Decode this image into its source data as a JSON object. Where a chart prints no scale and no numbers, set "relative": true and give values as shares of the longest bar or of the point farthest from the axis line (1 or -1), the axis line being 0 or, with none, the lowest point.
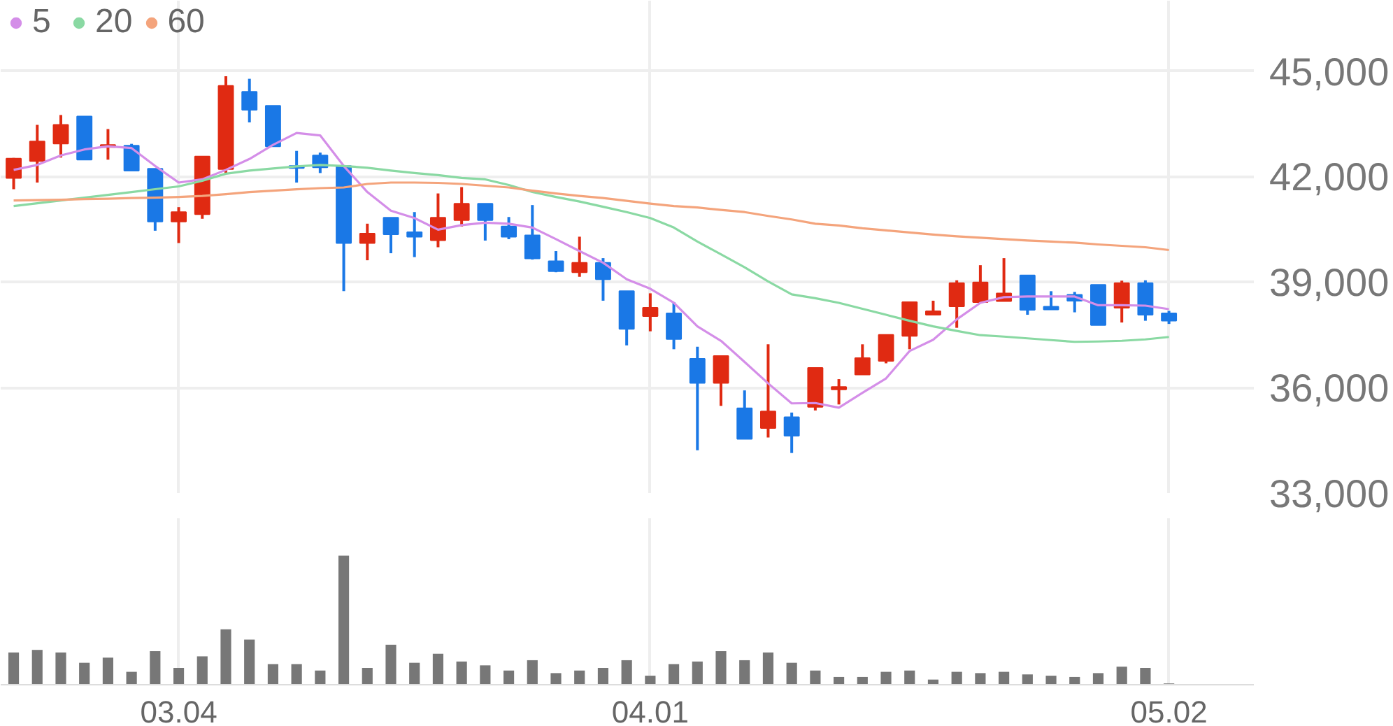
{
  "chart_data": [
    {
      "type": "candlestick",
      "categories": [
        null,
        null,
        null,
        null,
        null,
        null,
        null,
        "03.04",
        null,
        null,
        null,
        null,
        null,
        null,
        null,
        null,
        null,
        null,
        null,
        null,
        null,
        null,
        null,
        null,
        null,
        null,
        null,
        "04.01",
        null,
        null,
        null,
        null,
        null,
        null,
        null,
        null,
        null,
        null,
        null,
        null,
        null,
        null,
        null,
        null,
        null,
        null,
        null,
        null,
        null,
        "05.02"
      ],
      "ohlc": [
        [
          41960,
          42530,
          41640,
          42510
        ],
        [
          42440,
          43470,
          41830,
          43000
        ],
        [
          42940,
          43750,
          42540,
          43470
        ],
        [
          43710,
          43710,
          42480,
          42480
        ],
        [
          42840,
          43350,
          42480,
          42900
        ],
        [
          42880,
          42930,
          42170,
          42170
        ],
        [
          42220,
          42220,
          40460,
          40720
        ],
        [
          40720,
          41130,
          40110,
          40990
        ],
        [
          40930,
          42570,
          40800,
          42570
        ],
        [
          42210,
          44850,
          42100,
          44580
        ],
        [
          44410,
          44780,
          43540,
          43900
        ],
        [
          44010,
          44010,
          42860,
          42860
        ],
        [
          42300,
          42730,
          41830,
          42240
        ],
        [
          42600,
          42680,
          42100,
          42260
        ],
        [
          42300,
          42300,
          38740,
          40110
        ],
        [
          40110,
          40660,
          39620,
          40380
        ],
        [
          40830,
          40830,
          39820,
          40360
        ],
        [
          40420,
          40990,
          39710,
          40290
        ],
        [
          40190,
          41520,
          39990,
          40830
        ],
        [
          40760,
          41700,
          40580,
          41230
        ],
        [
          41230,
          41230,
          40180,
          40760
        ],
        [
          40580,
          40850,
          40220,
          40290
        ],
        [
          40330,
          41190,
          39640,
          39670
        ],
        [
          39590,
          39880,
          39280,
          39310
        ],
        [
          39280,
          40290,
          39150,
          39550
        ],
        [
          39550,
          39680,
          38470,
          39080
        ],
        [
          38740,
          38740,
          37200,
          37670
        ],
        [
          38030,
          38680,
          37600,
          38270
        ],
        [
          38110,
          38430,
          37090,
          37380
        ],
        [
          36820,
          37160,
          34220,
          36130
        ],
        [
          36130,
          36900,
          35480,
          36900
        ],
        [
          35410,
          35920,
          34540,
          34540
        ],
        [
          34850,
          37230,
          34580,
          35320
        ],
        [
          35160,
          35290,
          34140,
          34630
        ],
        [
          35450,
          36560,
          35350,
          36560
        ],
        [
          35950,
          36240,
          35520,
          36020
        ],
        [
          36370,
          37230,
          36370,
          36840
        ],
        [
          36760,
          37500,
          36690,
          37500
        ],
        [
          37470,
          38430,
          37090,
          38430
        ],
        [
          38070,
          38470,
          38070,
          38170
        ],
        [
          38310,
          39050,
          37700,
          38970
        ],
        [
          38430,
          39480,
          38430,
          38990
        ],
        [
          38460,
          39680,
          38460,
          38680
        ],
        [
          39190,
          39190,
          38070,
          38210
        ],
        [
          38300,
          38740,
          38220,
          38220
        ],
        [
          38640,
          38720,
          38140,
          38470
        ],
        [
          38920,
          38920,
          37780,
          37780
        ],
        [
          38270,
          39040,
          37850,
          38970
        ],
        [
          38970,
          39050,
          37900,
          38070
        ],
        [
          38110,
          38180,
          37810,
          37900
        ]
      ],
      "colors": [
        "#e02a12",
        "#e02a12",
        "#e02a12",
        "#1a78e6",
        "#e02a12",
        "#1a78e6",
        "#1a78e6",
        "#e02a12",
        "#e02a12",
        "#e02a12",
        "#1a78e6",
        "#1a78e6",
        "#1a78e6",
        "#1a78e6",
        "#1a78e6",
        "#e02a12",
        "#1a78e6",
        "#1a78e6",
        "#e02a12",
        "#e02a12",
        "#1a78e6",
        "#1a78e6",
        "#1a78e6",
        "#1a78e6",
        "#e02a12",
        "#1a78e6",
        "#1a78e6",
        "#e02a12",
        "#1a78e6",
        "#1a78e6",
        "#e02a12",
        "#1a78e6",
        "#e02a12",
        "#1a78e6",
        "#e02a12",
        "#e02a12",
        "#e02a12",
        "#e02a12",
        "#e02a12",
        "#e02a12",
        "#e02a12",
        "#e02a12",
        "#e02a12",
        "#1a78e6",
        "#1a78e6",
        "#1a78e6",
        "#1a78e6",
        "#e02a12",
        "#1a78e6",
        "#1a78e6"
      ],
      "series": [
        {
          "name": "5",
          "type": "line",
          "color": "#d48ee8",
          "values": [
            42190,
            42330,
            42600,
            42770,
            42860,
            42810,
            42300,
            41830,
            41920,
            42190,
            42500,
            42900,
            43240,
            43170,
            42300,
            41560,
            41030,
            40820,
            40490,
            40620,
            40690,
            40660,
            40550,
            40220,
            39880,
            39550,
            39080,
            38810,
            38410,
            37740,
            37330,
            36730,
            36120,
            35550,
            35560,
            35430,
            35850,
            36260,
            37040,
            37360,
            37940,
            38410,
            38570,
            38590,
            38590,
            38590,
            38340,
            38340,
            38330,
            38230
          ]
        },
        {
          "name": "20",
          "type": "line",
          "color": "#8ad9a3",
          "values": [
            41160,
            41240,
            41320,
            41400,
            41480,
            41560,
            41640,
            41720,
            41880,
            42080,
            42170,
            42230,
            42290,
            42330,
            42300,
            42250,
            42170,
            42100,
            42040,
            41960,
            41920,
            41760,
            41560,
            41420,
            41290,
            41140,
            40990,
            40820,
            40550,
            40150,
            39790,
            39420,
            39020,
            38650,
            38540,
            38410,
            38240,
            38070,
            37900,
            37740,
            37610,
            37490,
            37450,
            37400,
            37350,
            37300,
            37310,
            37330,
            37370,
            37440
          ]
        },
        {
          "name": "60",
          "type": "line",
          "color": "#f4a47c",
          "values": [
            41320,
            41330,
            41340,
            41360,
            41370,
            41390,
            41400,
            41420,
            41450,
            41500,
            41560,
            41600,
            41640,
            41670,
            41690,
            41790,
            41830,
            41830,
            41820,
            41790,
            41740,
            41690,
            41600,
            41520,
            41450,
            41390,
            41310,
            41230,
            41160,
            41120,
            41050,
            40990,
            40880,
            40780,
            40660,
            40610,
            40530,
            40470,
            40410,
            40350,
            40300,
            40260,
            40220,
            40180,
            40150,
            40120,
            40070,
            40030,
            39990,
            39910
          ]
        }
      ],
      "ylim": [
        33000,
        47000
      ],
      "yticks": [
        {
          "value": 33000,
          "label": "33,000"
        },
        {
          "value": 36000,
          "label": "36,000"
        },
        {
          "value": 39000,
          "label": "39,000"
        },
        {
          "value": 42000,
          "label": "42,000"
        },
        {
          "value": 45000,
          "label": "45,000"
        }
      ],
      "grid": true,
      "legend": "top left",
      "tick_labels": "y"
    },
    {
      "type": "bar",
      "relative": true,
      "color": "#777777",
      "grid": "x",
      "tick_labels": "x",
      "categories": [
        null,
        null,
        null,
        null,
        null,
        null,
        null,
        "03.04",
        null,
        null,
        null,
        null,
        null,
        null,
        null,
        null,
        null,
        null,
        null,
        null,
        null,
        null,
        null,
        null,
        null,
        null,
        null,
        "04.01",
        null,
        null,
        null,
        null,
        null,
        null,
        null,
        null,
        null,
        null,
        null,
        null,
        null,
        null,
        null,
        null,
        null,
        null,
        null,
        null,
        null,
        "05.02"
      ],
      "values": [
        0.25,
        0.27,
        0.25,
        0.17,
        0.21,
        0.1,
        0.26,
        0.13,
        0.22,
        0.43,
        0.35,
        0.16,
        0.16,
        0.11,
        1,
        0.13,
        0.31,
        0.17,
        0.24,
        0.18,
        0.15,
        0.11,
        0.19,
        0.09,
        0.11,
        0.13,
        0.19,
        0.07,
        0.16,
        0.18,
        0.26,
        0.19,
        0.25,
        0.17,
        0.11,
        0.06,
        0.06,
        0.1,
        0.11,
        0.04,
        0.1,
        0.09,
        0.1,
        0.08,
        0.07,
        0.06,
        0.09,
        0.14,
        0.13,
        0.01
      ]
    }
  ]
}
